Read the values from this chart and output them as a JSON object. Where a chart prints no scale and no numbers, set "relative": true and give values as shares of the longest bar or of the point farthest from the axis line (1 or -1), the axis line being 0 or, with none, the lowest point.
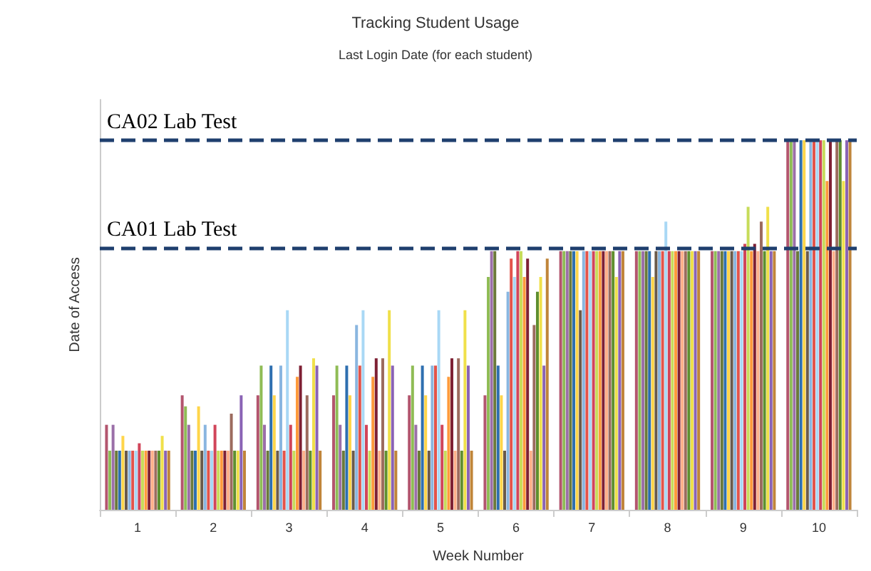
{
  "chart_data": {
    "type": "bar",
    "title": "Tracking Student Usage",
    "subtitle": "Last Login Date (for each student)",
    "xlabel": "Week Number",
    "ylabel": "Date of Access",
    "categories": [
      "1",
      "2",
      "3",
      "4",
      "5",
      "6",
      "7",
      "8",
      "9",
      "10"
    ],
    "relative": true,
    "ref_lines": [
      {
        "axis": "y",
        "value": 0.71,
        "label": "CA01 Lab Test",
        "color": "#1f3f6e",
        "line_style": "dashed"
      },
      {
        "axis": "y",
        "value": 1,
        "label": "CA02 Lab Test",
        "color": "#1f3f6e",
        "line_style": "dashed"
      }
    ],
    "series": [
      {
        "color": "#b3556e",
        "values": [
          0.23,
          0.31,
          0.31,
          0.31,
          0.31,
          0.31,
          0.7,
          0.7,
          0.7,
          1
        ]
      },
      {
        "color": "#8fbc55",
        "values": [
          0.16,
          0.28,
          0.39,
          0.39,
          0.39,
          0.63,
          0.7,
          0.7,
          0.7,
          1
        ]
      },
      {
        "color": "#9b6fa8",
        "values": [
          0.23,
          0.23,
          0.23,
          0.23,
          0.23,
          0.7,
          0.7,
          0.7,
          0.7,
          1
        ]
      },
      {
        "color": "#6b7a3a",
        "values": [
          0.16,
          0.16,
          0.16,
          0.16,
          0.16,
          0.7,
          0.7,
          0.7,
          0.7,
          0.7
        ]
      },
      {
        "color": "#2e6fb0",
        "values": [
          0.16,
          0.16,
          0.39,
          0.39,
          0.39,
          0.39,
          0.7,
          0.7,
          0.7,
          1
        ]
      },
      {
        "color": "#ffd54a",
        "values": [
          0.2,
          0.28,
          0.31,
          0.31,
          0.31,
          0.31,
          0.7,
          0.63,
          0.7,
          1
        ]
      },
      {
        "color": "#6a5a4a",
        "values": [
          0.16,
          0.16,
          0.16,
          0.16,
          0.16,
          0.16,
          0.54,
          0.7,
          0.7,
          0.7
        ]
      },
      {
        "color": "#8ab6e0",
        "values": [
          0.16,
          0.23,
          0.39,
          0.5,
          0.39,
          0.59,
          0.7,
          0.7,
          0.7,
          1
        ]
      },
      {
        "color": "#e3534a",
        "values": [
          0.16,
          0.16,
          0.16,
          0.39,
          0.39,
          0.68,
          0.7,
          0.7,
          0.7,
          1
        ]
      },
      {
        "color": "#a9d8f5",
        "values": [
          0.16,
          0.16,
          0.54,
          0.54,
          0.54,
          0.63,
          0.7,
          0.78,
          0.7,
          1
        ]
      },
      {
        "color": "#d1455a",
        "values": [
          0.18,
          0.23,
          0.23,
          0.23,
          0.23,
          0.7,
          0.7,
          0.7,
          0.72,
          1
        ]
      },
      {
        "color": "#c7dc5a",
        "values": [
          0.16,
          0.16,
          0.16,
          0.16,
          0.16,
          0.7,
          0.7,
          0.7,
          0.82,
          1
        ]
      },
      {
        "color": "#ff9a3c",
        "values": [
          0.16,
          0.16,
          0.36,
          0.36,
          0.36,
          0.63,
          0.7,
          0.7,
          0.7,
          0.89
        ]
      },
      {
        "color": "#7e2034",
        "values": [
          0.16,
          0.16,
          0.39,
          0.41,
          0.41,
          0.68,
          0.7,
          0.7,
          0.72,
          1
        ]
      },
      {
        "color": "#ffb08a",
        "values": [
          0.16,
          0.16,
          0.16,
          0.16,
          0.16,
          0.16,
          0.7,
          0.7,
          0.7,
          0.7
        ]
      },
      {
        "color": "#9c6b5e",
        "values": [
          0.16,
          0.26,
          0.31,
          0.41,
          0.41,
          0.5,
          0.7,
          0.7,
          0.78,
          1
        ]
      },
      {
        "color": "#5f8f2e",
        "values": [
          0.16,
          0.16,
          0.16,
          0.16,
          0.16,
          0.59,
          0.7,
          0.7,
          0.7,
          1
        ]
      },
      {
        "color": "#f0e04a",
        "values": [
          0.2,
          0.16,
          0.41,
          0.54,
          0.54,
          0.63,
          0.63,
          0.7,
          0.82,
          0.89
        ]
      },
      {
        "color": "#8a63b5",
        "values": [
          0.16,
          0.31,
          0.39,
          0.39,
          0.39,
          0.39,
          0.7,
          0.7,
          0.7,
          1
        ]
      },
      {
        "color": "#c0853a",
        "values": [
          0.16,
          0.16,
          0.16,
          0.16,
          0.16,
          0.68,
          0.7,
          0.7,
          0.7,
          1
        ]
      }
    ]
  }
}
